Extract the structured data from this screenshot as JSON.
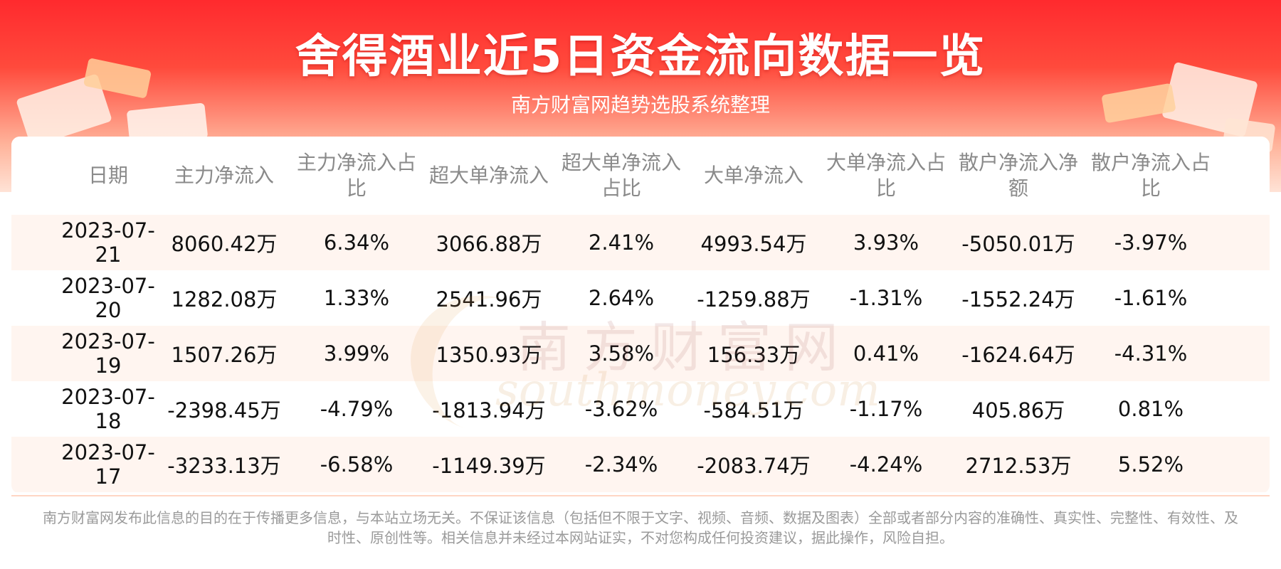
{
  "header": {
    "title": "舍得酒业近5日资金流向数据一览",
    "subtitle": "南方财富网趋势选股系统整理"
  },
  "watermark": {
    "cn": "南方财富网",
    "en": "southmoney.com"
  },
  "table": {
    "columns": [
      "日期",
      "主力净流入",
      "主力净流入占比",
      "超大单净流入",
      "超大单净流入占比",
      "大单净流入",
      "大单净流入占比",
      "散户净流入净额",
      "散户净流入占比"
    ],
    "rows": [
      [
        "2023-07-21",
        "8060.42万",
        "6.34%",
        "3066.88万",
        "2.41%",
        "4993.54万",
        "3.93%",
        "-5050.01万",
        "-3.97%"
      ],
      [
        "2023-07-20",
        "1282.08万",
        "1.33%",
        "2541.96万",
        "2.64%",
        "-1259.88万",
        "-1.31%",
        "-1552.24万",
        "-1.61%"
      ],
      [
        "2023-07-19",
        "1507.26万",
        "3.99%",
        "1350.93万",
        "3.58%",
        "156.33万",
        "0.41%",
        "-1624.64万",
        "-4.31%"
      ],
      [
        "2023-07-18",
        "-2398.45万",
        "-4.79%",
        "-1813.94万",
        "-3.62%",
        "-584.51万",
        "-1.17%",
        "405.86万",
        "0.81%"
      ],
      [
        "2023-07-17",
        "-3233.13万",
        "-6.58%",
        "-1149.39万",
        "-2.34%",
        "-2083.74万",
        "-4.24%",
        "2712.53万",
        "5.52%"
      ]
    ]
  },
  "footer": {
    "disclaimer": "南方财富网发布此信息的目的在于传播更多信息，与本站立场无关。不保证该信息（包括但不限于文字、视频、音频、数据及图表）全部或者部分内容的准确性、真实性、完整性、有效性、及时性、原创性等。相关信息并未经过本网站证实，不对您构成任何投资建议，据此操作，风险自担。"
  },
  "colors": {
    "header_red": "#ff2a2e",
    "row_alt_bg": "#fff5f0",
    "header_text": "#8a8a8a",
    "body_text": "#111111"
  }
}
